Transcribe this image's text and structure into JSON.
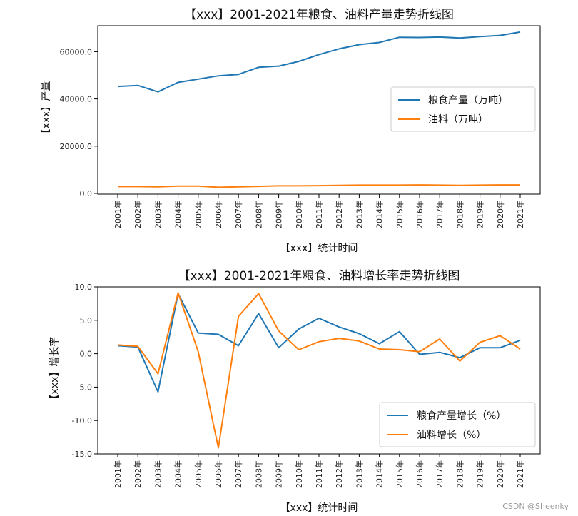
{
  "watermark": "CSDN @Sheenky",
  "colors": {
    "grain": "#1f77b4",
    "oil": "#ff7f0e"
  },
  "chart_data": [
    {
      "type": "line",
      "title": "【xxx】2001-2021年粮食、油料产量走势折线图",
      "xlabel": "【xxx】统计时间",
      "ylabel": "【xxx】产量",
      "categories": [
        "2001年",
        "2002年",
        "2003年",
        "2004年",
        "2005年",
        "2006年",
        "2007年",
        "2008年",
        "2009年",
        "2010年",
        "2011年",
        "2012年",
        "2013年",
        "2014年",
        "2015年",
        "2016年",
        "2017年",
        "2018年",
        "2019年",
        "2020年",
        "2021年"
      ],
      "yticks": [
        "0.0",
        "20000.0",
        "40000.0",
        "60000.0"
      ],
      "ylim": [
        -300,
        71000
      ],
      "legend_position": "center-right",
      "series": [
        {
          "name": "粮食产量（万吨）",
          "values": [
            45300,
            45700,
            43000,
            47000,
            48400,
            49800,
            50400,
            53400,
            53900,
            55900,
            58800,
            61200,
            63000,
            63900,
            66100,
            66000,
            66200,
            65800,
            66400,
            66900,
            68300
          ]
        },
        {
          "name": "油料（万吨）",
          "values": [
            2900,
            2900,
            2800,
            3100,
            3100,
            2600,
            2800,
            3000,
            3200,
            3200,
            3300,
            3400,
            3500,
            3500,
            3500,
            3600,
            3500,
            3400,
            3500,
            3600,
            3600
          ]
        }
      ]
    },
    {
      "type": "line",
      "title": "【xxx】2001-2021年粮食、油料增长率走势折线图",
      "xlabel": "【xxx】统计时间",
      "ylabel": "【xxx】增长率",
      "categories": [
        "2001年",
        "2002年",
        "2003年",
        "2004年",
        "2005年",
        "2006年",
        "2007年",
        "2008年",
        "2009年",
        "2010年",
        "2011年",
        "2012年",
        "2013年",
        "2014年",
        "2015年",
        "2016年",
        "2017年",
        "2018年",
        "2019年",
        "2020年",
        "2021年"
      ],
      "yticks": [
        "-15.0",
        "-10.0",
        "-5.0",
        "0.0",
        "5.0",
        "10.0"
      ],
      "ylim": [
        -15.0,
        10.0
      ],
      "legend_position": "lower-right",
      "series": [
        {
          "name": "粮食产量增长（%）",
          "values": [
            1.2,
            1.0,
            -5.7,
            9.0,
            3.1,
            2.9,
            1.2,
            6.0,
            0.9,
            3.7,
            5.3,
            4.0,
            3.0,
            1.5,
            3.3,
            -0.1,
            0.2,
            -0.6,
            0.9,
            0.9,
            2.0
          ]
        },
        {
          "name": "油料增长（%）",
          "values": [
            1.3,
            1.1,
            -3.0,
            9.1,
            0.3,
            -14.1,
            5.6,
            9.0,
            3.4,
            0.6,
            1.8,
            2.3,
            1.9,
            0.7,
            0.6,
            0.3,
            2.2,
            -1.1,
            1.7,
            2.7,
            0.7
          ]
        }
      ]
    }
  ]
}
